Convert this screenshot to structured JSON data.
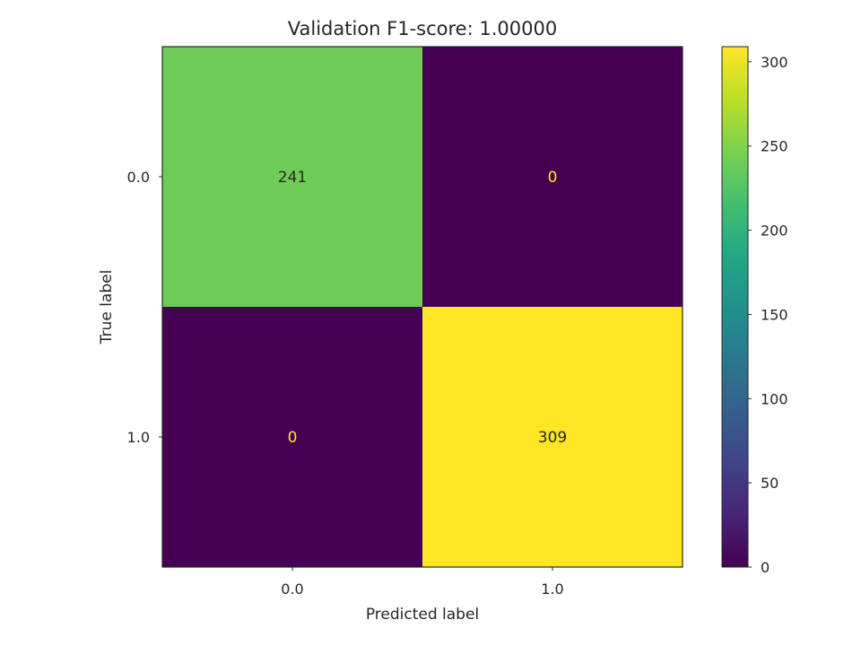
{
  "chart_data": {
    "type": "heatmap",
    "title": "Validation F1-score: 1.00000",
    "xlabel": "Predicted label",
    "ylabel": "True label",
    "x_categories": [
      "0.0",
      "1.0"
    ],
    "y_categories": [
      "0.0",
      "1.0"
    ],
    "values": [
      [
        241,
        0
      ],
      [
        0,
        309
      ]
    ],
    "colormap": "viridis",
    "colorbar": {
      "range": [
        0,
        309
      ],
      "ticks": [
        0,
        50,
        100,
        150,
        200,
        250,
        300
      ]
    },
    "grid": false,
    "colors": {
      "light_text": "#fde725",
      "dark_text": "#262626"
    }
  }
}
